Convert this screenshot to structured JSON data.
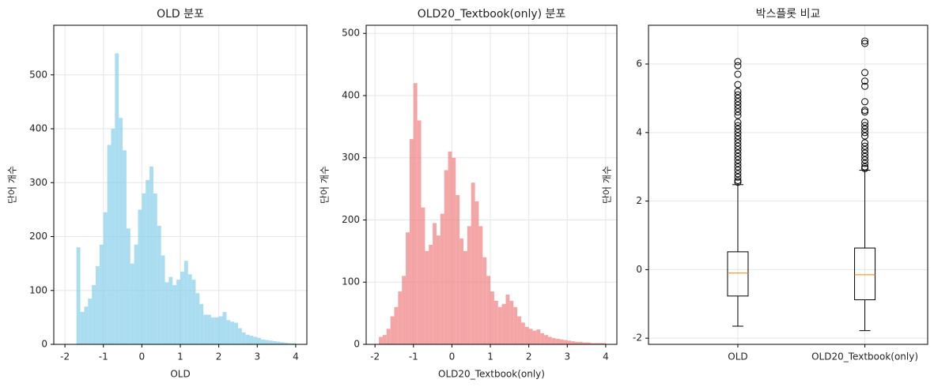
{
  "chart_data": [
    {
      "type": "histogram",
      "title": "OLD 분포",
      "x_label": "OLD",
      "y_label": "단어 개수",
      "color": "#87ceeb",
      "grid": true,
      "bins": [
        -1.7,
        -1.6,
        -1.5,
        -1.4,
        -1.3,
        -1.2,
        -1.1,
        -1.0,
        -0.9,
        -0.8,
        -0.7,
        -0.6,
        -0.5,
        -0.4,
        -0.3,
        -0.2,
        -0.1,
        0.0,
        0.1,
        0.2,
        0.3,
        0.4,
        0.5,
        0.6,
        0.7,
        0.8,
        0.9,
        1.0,
        1.1,
        1.2,
        1.3,
        1.4,
        1.5,
        1.6,
        1.7,
        1.8,
        1.9,
        2.0,
        2.1,
        2.2,
        2.3,
        2.4,
        2.5,
        2.6,
        2.7,
        2.8,
        2.9,
        3.0,
        3.1,
        3.2,
        3.3,
        3.4,
        3.5,
        3.6,
        3.7,
        3.8,
        3.9,
        4.0
      ],
      "values": [
        180,
        60,
        70,
        85,
        110,
        145,
        185,
        245,
        370,
        400,
        540,
        420,
        360,
        215,
        150,
        185,
        250,
        280,
        305,
        330,
        280,
        220,
        165,
        115,
        125,
        110,
        120,
        135,
        155,
        130,
        120,
        95,
        75,
        55,
        55,
        50,
        50,
        52,
        60,
        45,
        42,
        40,
        30,
        22,
        18,
        16,
        14,
        12,
        9,
        8,
        7,
        6,
        5,
        4,
        3,
        2,
        2
      ],
      "xlim": [
        -2.29,
        4.29
      ],
      "xticks": [
        -2,
        -1,
        0,
        1,
        2,
        3,
        4
      ],
      "ylim": [
        0,
        592
      ],
      "yticks": [
        0,
        100,
        200,
        300,
        400,
        500
      ]
    },
    {
      "type": "histogram",
      "title": "OLD20_Textbook(only) 분포",
      "x_label": "OLD20_Textbook(only)",
      "y_label": "단어 개수",
      "color": "#f08080",
      "grid": true,
      "bins": [
        -1.9,
        -1.8,
        -1.7,
        -1.6,
        -1.5,
        -1.4,
        -1.3,
        -1.2,
        -1.1,
        -1.0,
        -0.9,
        -0.8,
        -0.7,
        -0.6,
        -0.5,
        -0.4,
        -0.3,
        -0.2,
        -0.1,
        0.0,
        0.1,
        0.2,
        0.3,
        0.4,
        0.5,
        0.6,
        0.7,
        0.8,
        0.9,
        1.0,
        1.1,
        1.2,
        1.3,
        1.4,
        1.5,
        1.6,
        1.7,
        1.8,
        1.9,
        2.0,
        2.1,
        2.2,
        2.3,
        2.4,
        2.5,
        2.6,
        2.7,
        2.8,
        2.9,
        3.0,
        3.1,
        3.2,
        3.3,
        3.4,
        3.5,
        3.6,
        3.7,
        3.8,
        3.9,
        4.0
      ],
      "values": [
        12,
        15,
        25,
        45,
        60,
        85,
        110,
        180,
        330,
        420,
        360,
        220,
        150,
        160,
        195,
        175,
        210,
        280,
        310,
        300,
        240,
        170,
        150,
        190,
        260,
        230,
        190,
        140,
        110,
        85,
        70,
        60,
        65,
        80,
        70,
        60,
        45,
        35,
        28,
        25,
        22,
        24,
        18,
        15,
        12,
        10,
        9,
        8,
        7,
        6,
        5,
        4,
        4,
        3,
        3,
        2,
        2,
        2,
        2
      ],
      "xlim": [
        -2.23,
        4.29
      ],
      "xticks": [
        -2,
        -1,
        0,
        1,
        2,
        3,
        4
      ],
      "ylim": [
        0,
        513
      ],
      "yticks": [
        0,
        100,
        200,
        300,
        400,
        500
      ]
    },
    {
      "type": "boxplot",
      "title": "박스플롯 비교",
      "y_label": "단어 개수",
      "grid": true,
      "median_color": "#ff7f0e",
      "categories": [
        "OLD",
        "OLD20_Textbook(only)"
      ],
      "boxes": [
        {
          "low": -1.65,
          "q1": -0.77,
          "median": -0.1,
          "q3": 0.52,
          "high": 2.48,
          "outliers": [
            2.55,
            2.6,
            2.7,
            2.8,
            2.9,
            3.0,
            3.1,
            3.2,
            3.3,
            3.4,
            3.5,
            3.6,
            3.7,
            3.8,
            3.9,
            4.0,
            4.1,
            4.2,
            4.3,
            4.5,
            4.6,
            4.7,
            4.8,
            4.9,
            5.0,
            5.1,
            5.2,
            5.4,
            5.7,
            5.95,
            6.07
          ]
        },
        {
          "low": -1.78,
          "q1": -0.88,
          "median": -0.15,
          "q3": 0.63,
          "high": 2.9,
          "outliers": [
            2.95,
            3.0,
            3.1,
            3.2,
            3.3,
            3.4,
            3.5,
            3.6,
            3.7,
            3.9,
            4.0,
            4.1,
            4.2,
            4.3,
            4.6,
            4.65,
            4.9,
            5.35,
            5.5,
            5.75,
            6.6,
            6.67
          ]
        }
      ],
      "ylim": [
        -2.18,
        7.13
      ],
      "yticks": [
        -2,
        0,
        2,
        4,
        6
      ]
    }
  ]
}
